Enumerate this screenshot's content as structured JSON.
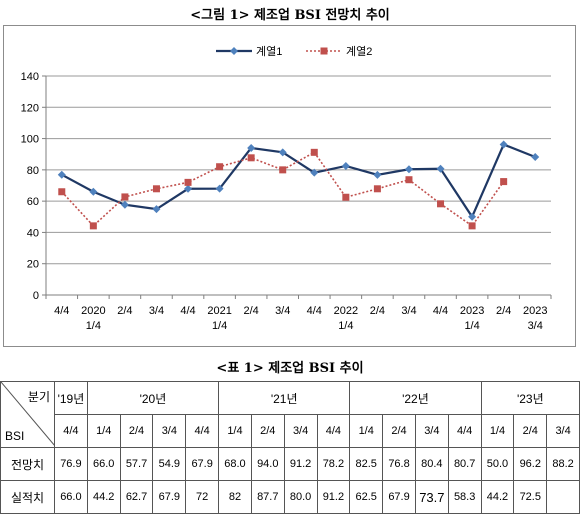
{
  "figure_caption": "<그림 1> 제조업 BSI 전망치 추이",
  "table_caption": "<표 1> 제조업 BSI 추이",
  "chart_data": {
    "type": "line",
    "title": "",
    "xlabel": "",
    "ylabel": "",
    "ylim": [
      0,
      140
    ],
    "yticks": [
      0,
      20,
      40,
      60,
      80,
      100,
      120,
      140
    ],
    "grid": true,
    "legend_position": "top",
    "categories": [
      [
        "4/4"
      ],
      [
        "2020",
        "1/4"
      ],
      [
        "2/4"
      ],
      [
        "3/4"
      ],
      [
        "4/4"
      ],
      [
        "2021",
        "1/4"
      ],
      [
        "2/4"
      ],
      [
        "3/4"
      ],
      [
        "4/4"
      ],
      [
        "2022",
        "1/4"
      ],
      [
        "2/4"
      ],
      [
        "3/4"
      ],
      [
        "4/4"
      ],
      [
        "2023",
        "1/4"
      ],
      [
        "2/4"
      ],
      [
        "2023",
        "3/4"
      ]
    ],
    "series": [
      {
        "name": "계열1",
        "color": "#1f3864",
        "marker_color": "#4f81bd",
        "marker": "diamond",
        "line": "solid",
        "values": [
          76.9,
          66.0,
          57.7,
          54.9,
          67.9,
          68.0,
          94.0,
          91.2,
          78.2,
          82.5,
          76.8,
          80.4,
          80.7,
          50.0,
          96.2,
          88.2
        ]
      },
      {
        "name": "계열2",
        "color": "#c0504d",
        "marker_color": "#c0504d",
        "marker": "square",
        "line": "dotted",
        "values": [
          66.0,
          44.2,
          62.7,
          67.9,
          72,
          82,
          87.7,
          80.0,
          91.2,
          62.5,
          67.9,
          73.7,
          58.3,
          44.2,
          72.5,
          null
        ]
      }
    ]
  },
  "table": {
    "corner_top": "분기",
    "corner_bottom": "BSI",
    "years": [
      {
        "label": "'19년",
        "span": 1
      },
      {
        "label": "'20년",
        "span": 4
      },
      {
        "label": "'21년",
        "span": 4
      },
      {
        "label": "'22년",
        "span": 4
      },
      {
        "label": "'23년",
        "span": 3
      }
    ],
    "quarters": [
      "4/4",
      "1/4",
      "2/4",
      "3/4",
      "4/4",
      "1/4",
      "2/4",
      "3/4",
      "4/4",
      "1/4",
      "2/4",
      "3/4",
      "4/4",
      "1/4",
      "2/4",
      "3/4"
    ],
    "rows": [
      {
        "label": "전망치",
        "values": [
          "76.9",
          "66.0",
          "57.7",
          "54.9",
          "67.9",
          "68.0",
          "94.0",
          "91.2",
          "78.2",
          "82.5",
          "76.8",
          "80.4",
          "80.7",
          "50.0",
          "96.2",
          "88.2"
        ]
      },
      {
        "label": "실적치",
        "values": [
          "66.0",
          "44.2",
          "62.7",
          "67.9",
          "72",
          "82",
          "87.7",
          "80.0",
          "91.2",
          "62.5",
          "67.9",
          "73.7",
          "58.3",
          "44.2",
          "72.5",
          ""
        ]
      }
    ]
  }
}
